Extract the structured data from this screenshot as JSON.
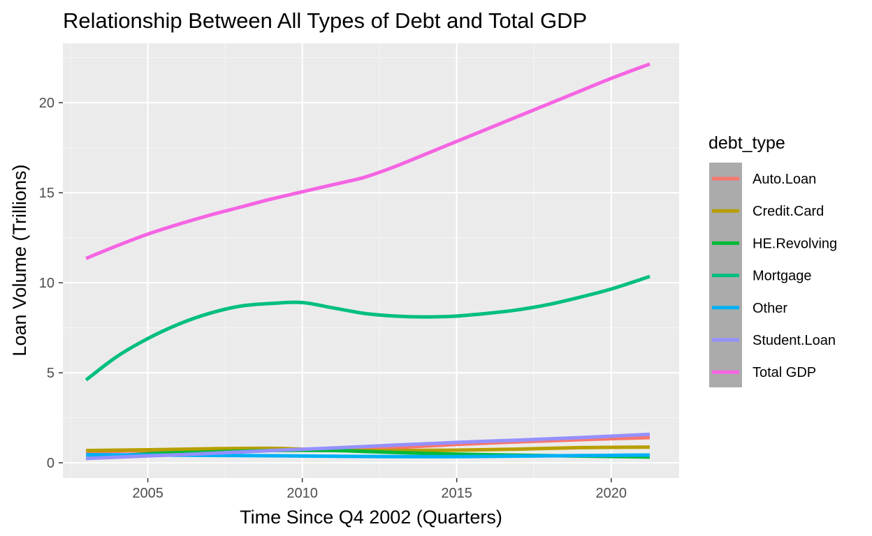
{
  "chart_data": {
    "type": "line",
    "title": "Relationship Between All Types of Debt and Total GDP",
    "xlabel": "Time Since Q4 2002 (Quarters)",
    "ylabel": "Loan Volume (Trillions)",
    "xlim": [
      2002.25,
      2022.2
    ],
    "ylim": [
      -0.85,
      23.3
    ],
    "x_ticks": [
      2005,
      2010,
      2015,
      2020
    ],
    "x_tick_labels": [
      "2005",
      "2010",
      "2015",
      "2020"
    ],
    "y_ticks": [
      0,
      5,
      10,
      15,
      20
    ],
    "y_tick_labels": [
      "0",
      "5",
      "10",
      "15",
      "20"
    ],
    "grid": true,
    "legend": {
      "title": "debt_type",
      "position": "right"
    },
    "series": [
      {
        "name": "Auto.Loan",
        "color": "#F8766D",
        "x": [
          2003,
          2005,
          2007,
          2009,
          2011,
          2013,
          2015,
          2017,
          2019,
          2021.25
        ],
        "values": [
          0.6,
          0.68,
          0.76,
          0.76,
          0.72,
          0.84,
          1.02,
          1.16,
          1.28,
          1.4
        ]
      },
      {
        "name": "Credit.Card",
        "color": "#B79F00",
        "x": [
          2003,
          2005,
          2007,
          2009,
          2011,
          2013,
          2015,
          2017,
          2019,
          2021.25
        ],
        "values": [
          0.68,
          0.72,
          0.78,
          0.8,
          0.7,
          0.68,
          0.7,
          0.76,
          0.84,
          0.87
        ]
      },
      {
        "name": "HE.Revolving",
        "color": "#00BA38",
        "x": [
          2003,
          2005,
          2007,
          2009,
          2011,
          2013,
          2015,
          2017,
          2019,
          2021.25
        ],
        "values": [
          0.24,
          0.5,
          0.6,
          0.68,
          0.68,
          0.57,
          0.48,
          0.42,
          0.37,
          0.32
        ]
      },
      {
        "name": "Mortgage",
        "color": "#00BF7D",
        "x": [
          2003,
          2004,
          2005,
          2006,
          2007,
          2008,
          2009,
          2010,
          2011,
          2012,
          2013,
          2014,
          2015,
          2016,
          2017,
          2018,
          2019,
          2020,
          2021.25
        ],
        "values": [
          4.6,
          5.9,
          6.9,
          7.7,
          8.3,
          8.7,
          8.85,
          8.9,
          8.6,
          8.3,
          8.15,
          8.1,
          8.15,
          8.3,
          8.5,
          8.8,
          9.2,
          9.65,
          10.35
        ]
      },
      {
        "name": "Other",
        "color": "#00B0F6",
        "x": [
          2003,
          2005,
          2007,
          2009,
          2011,
          2013,
          2015,
          2017,
          2019,
          2021.25
        ],
        "values": [
          0.45,
          0.43,
          0.41,
          0.39,
          0.36,
          0.34,
          0.34,
          0.37,
          0.4,
          0.43
        ]
      },
      {
        "name": "Student.Loan",
        "color": "#9590FF",
        "x": [
          2003,
          2005,
          2007,
          2009,
          2011,
          2013,
          2015,
          2017,
          2019,
          2021.25
        ],
        "values": [
          0.24,
          0.38,
          0.52,
          0.68,
          0.82,
          0.98,
          1.13,
          1.26,
          1.4,
          1.58
        ]
      },
      {
        "name": "Total GDP",
        "color": "#F564E3",
        "x": [
          2003,
          2004,
          2005,
          2006,
          2007,
          2008,
          2009,
          2010,
          2011,
          2012,
          2013,
          2014,
          2015,
          2016,
          2017,
          2018,
          2019,
          2020,
          2021.25
        ],
        "values": [
          11.35,
          12.05,
          12.7,
          13.25,
          13.75,
          14.2,
          14.65,
          15.05,
          15.45,
          15.85,
          16.45,
          17.15,
          17.85,
          18.55,
          19.25,
          19.95,
          20.65,
          21.35,
          22.15
        ]
      }
    ]
  }
}
